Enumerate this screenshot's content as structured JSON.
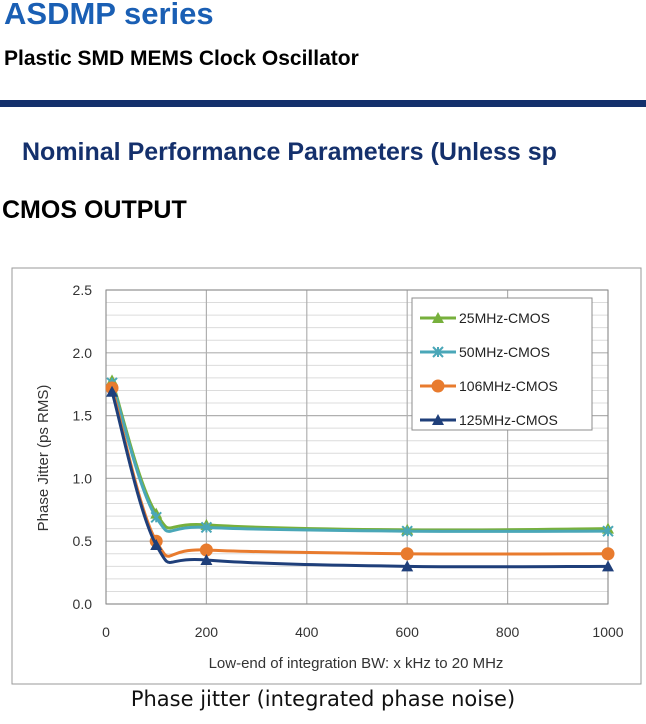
{
  "header": {
    "title": "ASDMP series",
    "subtitle": "Plastic SMD MEMS Clock Oscillator",
    "section_title": "Nominal Performance Parameters (Unless sp",
    "output_label": "CMOS OUTPUT",
    "caption": "Phase jitter (integrated phase noise)"
  },
  "chart_data": {
    "type": "line",
    "title": "",
    "xlabel": "Low-end of integration BW: x kHz to 20 MHz",
    "ylabel": "Phase Jitter (ps RMS)",
    "xlim": [
      0,
      1000
    ],
    "ylim": [
      0,
      2.5
    ],
    "x_ticks": [
      "0",
      "200",
      "400",
      "600",
      "800",
      "1000"
    ],
    "y_ticks": [
      "0.0",
      "0.5",
      "1.0",
      "1.5",
      "2.0",
      "2.5"
    ],
    "grid": true,
    "legend_position": "top-right",
    "series": [
      {
        "name": "25MHz-CMOS",
        "color": "#77b03c",
        "marker": "triangle",
        "x": [
          12,
          100,
          200,
          600,
          1000
        ],
        "y": [
          1.78,
          0.72,
          0.63,
          0.59,
          0.6
        ]
      },
      {
        "name": "50MHz-CMOS",
        "color": "#4aa7b8",
        "marker": "x",
        "x": [
          12,
          100,
          200,
          600,
          1000
        ],
        "y": [
          1.76,
          0.69,
          0.61,
          0.58,
          0.58
        ]
      },
      {
        "name": "106MHz-CMOS",
        "color": "#e87b2e",
        "marker": "circle",
        "x": [
          12,
          100,
          200,
          600,
          1000
        ],
        "y": [
          1.72,
          0.5,
          0.43,
          0.4,
          0.4
        ]
      },
      {
        "name": "125MHz-CMOS",
        "color": "#1f3f7a",
        "marker": "triangle",
        "x": [
          12,
          100,
          200,
          600,
          1000
        ],
        "y": [
          1.69,
          0.47,
          0.35,
          0.3,
          0.3
        ]
      }
    ]
  }
}
